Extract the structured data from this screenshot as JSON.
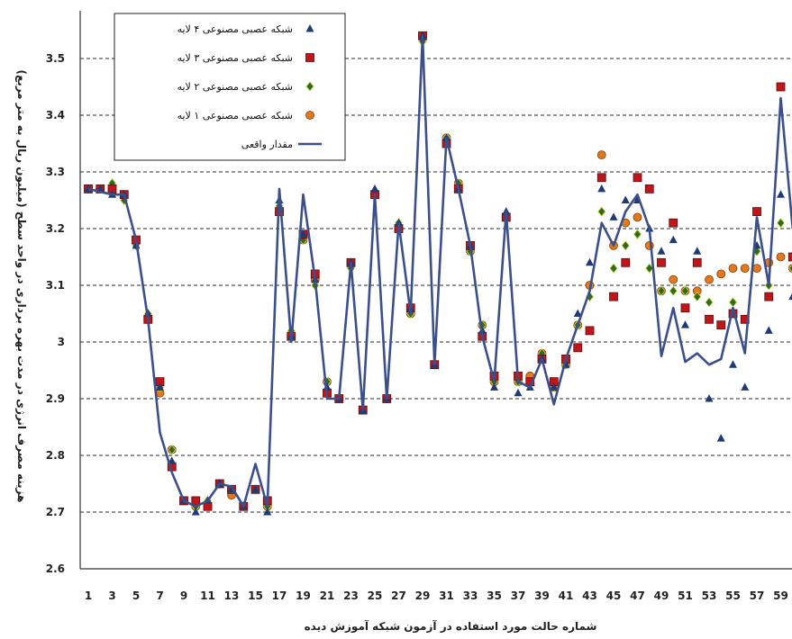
{
  "chart_data": {
    "type": "line",
    "xlabel": "شماره حالت مورد استفاده در آزمون شبکه آموزش دیده",
    "ylabel": "هزینه مصرف انرژی در مدت بهره برداری در واحد سطح (میلیون ریال به متر مربع)",
    "ylim": [
      2.6,
      3.6
    ],
    "yticks": [
      "2.6",
      "2.7",
      "2.8",
      "2.9",
      "3",
      "3.1",
      "3.2",
      "3.3",
      "3.4",
      "3.5"
    ],
    "xticks": [
      "1",
      "3",
      "5",
      "7",
      "9",
      "11",
      "13",
      "15",
      "17",
      "19",
      "21",
      "23",
      "25",
      "27",
      "29",
      "31",
      "33",
      "35",
      "37",
      "39",
      "41",
      "43",
      "45",
      "47",
      "49",
      "51",
      "53",
      "55",
      "57",
      "59"
    ],
    "grid": "horizontal dashed",
    "legend_position": "top-left",
    "x": [
      1,
      2,
      3,
      4,
      5,
      6,
      7,
      8,
      9,
      10,
      11,
      12,
      13,
      14,
      15,
      16,
      17,
      18,
      19,
      20,
      21,
      22,
      23,
      24,
      25,
      26,
      27,
      28,
      29,
      30,
      31,
      32,
      33,
      34,
      35,
      36,
      37,
      38,
      39,
      40,
      41,
      42,
      43,
      44,
      45,
      46,
      47,
      48,
      49,
      50,
      51,
      52,
      53,
      54,
      55,
      56,
      57,
      58,
      59,
      60
    ],
    "series": [
      {
        "name": "مقدار واقعی",
        "kind": "line",
        "color": "#3b4f8a",
        "values": [
          3.27,
          3.265,
          3.26,
          3.26,
          3.18,
          3.04,
          2.84,
          2.77,
          2.72,
          2.71,
          2.72,
          2.75,
          2.745,
          2.71,
          2.785,
          2.71,
          3.27,
          3.0,
          3.26,
          3.11,
          2.9,
          2.9,
          3.14,
          2.88,
          3.26,
          2.9,
          3.21,
          3.05,
          3.54,
          2.96,
          3.36,
          3.27,
          3.17,
          3.01,
          2.93,
          3.23,
          2.93,
          2.92,
          2.97,
          2.89,
          2.97,
          3.03,
          3.09,
          3.21,
          3.17,
          3.23,
          3.26,
          3.2,
          2.975,
          3.06,
          2.965,
          2.98,
          2.96,
          2.97,
          3.06,
          2.98,
          3.22,
          3.1,
          3.43,
          3.2
        ]
      },
      {
        "name": "شبکه عصبی مصنوعی ۴ لایه",
        "kind": "triangle",
        "color": "#1f3b73",
        "values": [
          3.27,
          3.27,
          3.26,
          3.26,
          3.17,
          3.05,
          2.92,
          2.79,
          2.72,
          2.7,
          2.72,
          2.75,
          2.74,
          2.71,
          2.74,
          2.7,
          3.25,
          3.01,
          3.19,
          3.11,
          2.92,
          2.9,
          3.14,
          2.88,
          3.27,
          2.9,
          3.21,
          3.06,
          3.54,
          2.96,
          3.36,
          3.27,
          3.17,
          3.02,
          2.92,
          3.23,
          2.91,
          2.92,
          2.97,
          2.92,
          2.96,
          3.05,
          3.14,
          3.27,
          3.22,
          3.25,
          3.25,
          3.2,
          3.16,
          3.18,
          3.03,
          3.16,
          2.9,
          2.83,
          2.96,
          2.92,
          3.17,
          3.02,
          3.26,
          3.08
        ]
      },
      {
        "name": "شبکه عصبی مصنوعی ۳ لایه",
        "kind": "square",
        "color": "#c0161b",
        "values": [
          3.27,
          3.27,
          3.27,
          3.26,
          3.18,
          3.04,
          2.93,
          2.78,
          2.72,
          2.72,
          2.71,
          2.75,
          2.74,
          2.71,
          2.74,
          2.72,
          3.23,
          3.01,
          3.19,
          3.12,
          2.91,
          2.9,
          3.14,
          2.88,
          3.26,
          2.9,
          3.2,
          3.06,
          3.54,
          2.96,
          3.35,
          3.27,
          3.17,
          3.01,
          2.94,
          3.22,
          2.94,
          2.93,
          2.97,
          2.93,
          2.97,
          2.99,
          3.02,
          3.29,
          3.08,
          3.14,
          3.29,
          3.27,
          3.14,
          3.21,
          3.06,
          3.14,
          3.04,
          3.03,
          3.05,
          3.04,
          3.23,
          3.08,
          3.45,
          3.15
        ]
      },
      {
        "name": "شبکه عصبی مصنوعی ۲ لایه",
        "kind": "diamond",
        "color": "#2e6b1f",
        "values": [
          3.27,
          3.27,
          3.28,
          3.25,
          3.17,
          3.05,
          2.92,
          2.81,
          2.72,
          2.71,
          2.72,
          2.75,
          2.74,
          2.71,
          2.74,
          2.71,
          3.24,
          3.02,
          3.18,
          3.1,
          2.93,
          2.9,
          3.13,
          2.88,
          3.26,
          2.9,
          3.21,
          3.05,
          3.53,
          2.96,
          3.36,
          3.28,
          3.16,
          3.03,
          2.93,
          3.22,
          2.93,
          2.93,
          2.98,
          2.92,
          2.96,
          3.03,
          3.08,
          3.23,
          3.13,
          3.17,
          3.19,
          3.13,
          3.09,
          3.09,
          3.09,
          3.08,
          3.07,
          3.03,
          3.07,
          3.04,
          3.16,
          3.1,
          3.21,
          3.13
        ]
      },
      {
        "name": "شبکه عصبی مصنوعی ۱ لایه",
        "kind": "circle",
        "color": "#e07a1f",
        "values": [
          3.27,
          3.27,
          3.265,
          3.26,
          3.18,
          3.04,
          2.91,
          2.81,
          2.72,
          2.71,
          2.71,
          2.75,
          2.73,
          2.71,
          2.74,
          2.71,
          3.23,
          3.01,
          3.18,
          3.11,
          2.93,
          2.9,
          3.14,
          2.88,
          3.26,
          2.9,
          3.2,
          3.05,
          3.54,
          2.96,
          3.36,
          3.28,
          3.16,
          3.03,
          2.93,
          3.22,
          2.93,
          2.94,
          2.98,
          2.92,
          2.96,
          3.03,
          3.1,
          3.33,
          3.17,
          3.21,
          3.22,
          3.17,
          3.09,
          3.11,
          3.09,
          3.09,
          3.11,
          3.12,
          3.13,
          3.13,
          3.13,
          3.14,
          3.15,
          3.13
        ]
      }
    ]
  }
}
